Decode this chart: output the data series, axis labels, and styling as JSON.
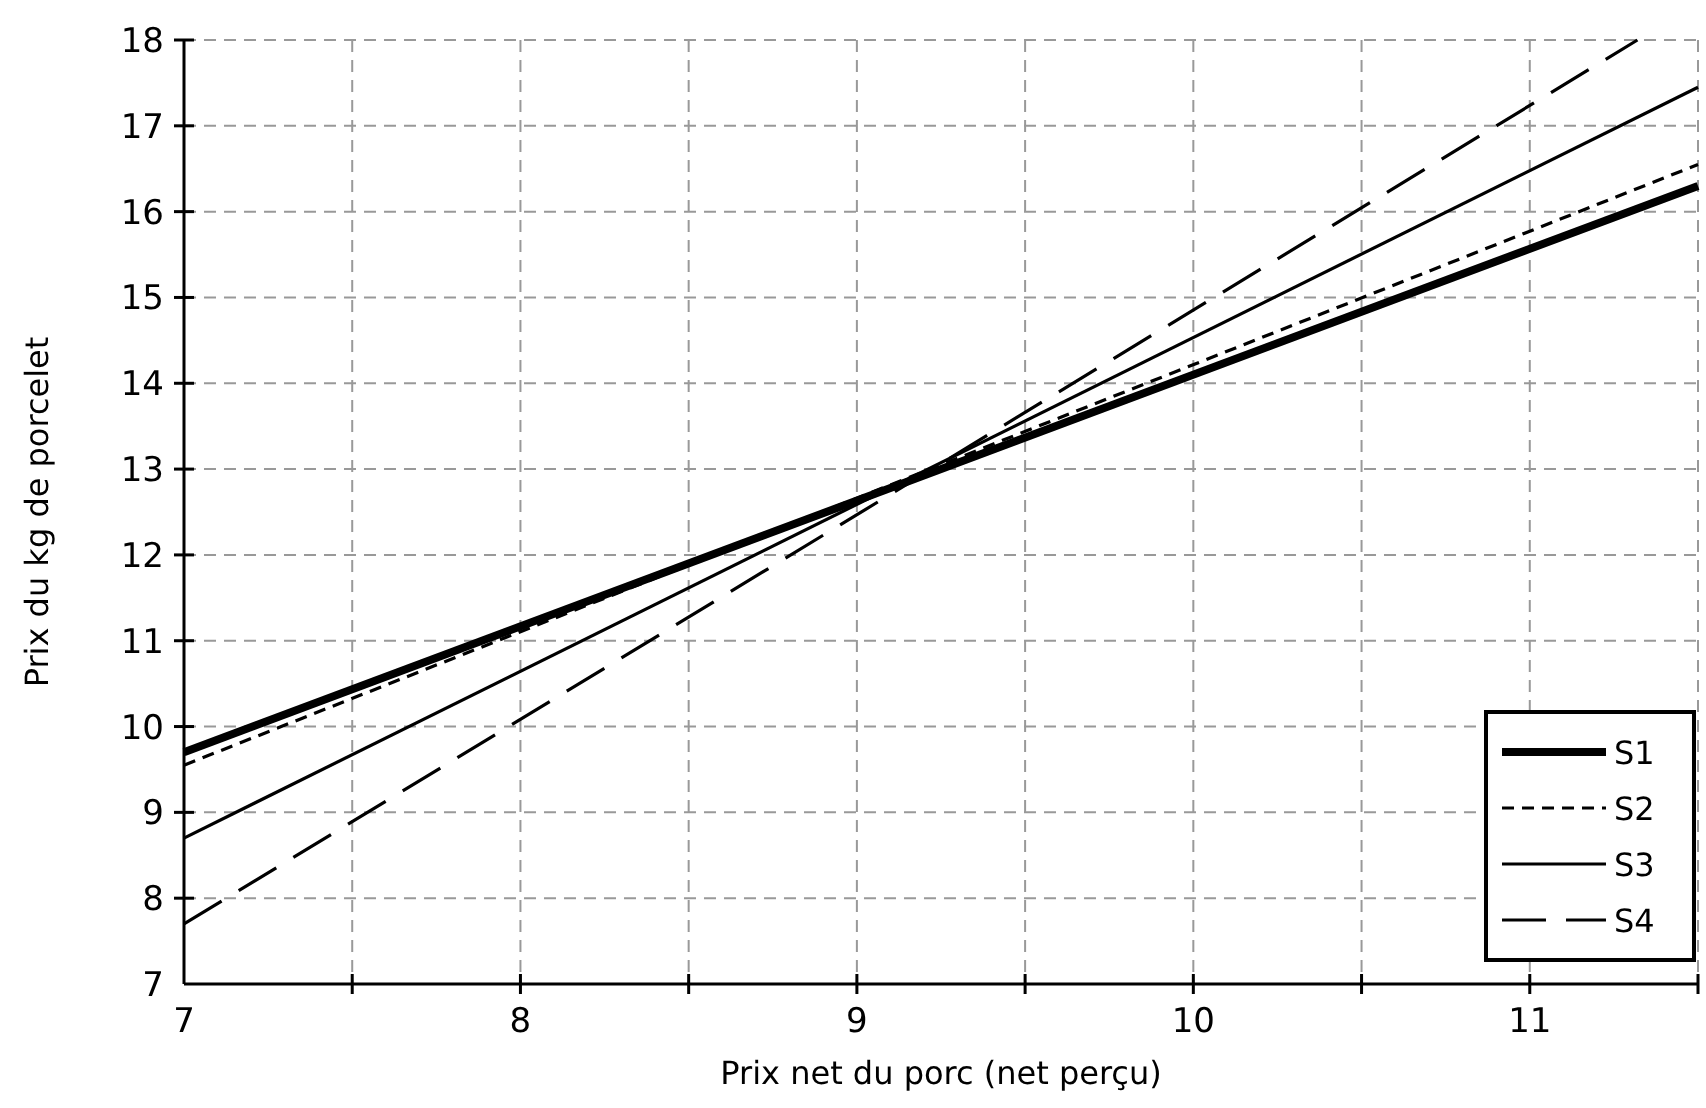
{
  "chart_data": {
    "type": "line",
    "xlabel": "Prix net du porc (net perçu)",
    "ylabel": "Prix du kg de porcelet",
    "xlim": [
      7,
      11.5
    ],
    "ylim": [
      7,
      18
    ],
    "xticks": [
      7,
      {
        "value": 7.5,
        "label": null
      },
      8,
      {
        "value": 8.5,
        "label": null
      },
      9,
      {
        "value": 9.5,
        "label": null
      },
      10,
      {
        "value": 10.5,
        "label": null
      },
      11,
      {
        "value": 11.5,
        "label": null
      }
    ],
    "yticks": [
      7,
      8,
      9,
      10,
      11,
      12,
      13,
      14,
      15,
      16,
      17,
      18
    ],
    "grid": true,
    "legend": "bottom right",
    "series": [
      {
        "name": "S1",
        "color": "#000000",
        "line_style": "solid",
        "x": [
          7,
          11.5
        ],
        "values": [
          9.7,
          16.3
        ]
      },
      {
        "name": "S2",
        "color": "#000000",
        "line_style": "dotted",
        "x": [
          7,
          11.5
        ],
        "values": [
          9.55,
          16.55
        ]
      },
      {
        "name": "S3",
        "color": "#000000",
        "line_style": "solid",
        "x": [
          7,
          11.5
        ],
        "values": [
          8.7,
          17.45
        ]
      },
      {
        "name": "S4",
        "color": "#000000",
        "line_style": "dashed",
        "x": [
          7,
          11.32
        ],
        "values": [
          7.7,
          18
        ]
      }
    ]
  }
}
